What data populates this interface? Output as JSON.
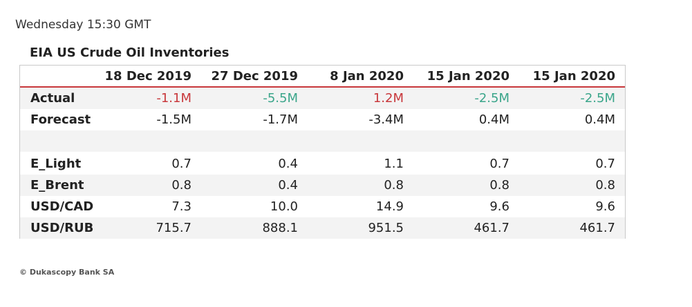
{
  "timestamp": "Wednesday 15:30 GMT",
  "table": {
    "title": "EIA US Crude Oil Inventories",
    "columns": [
      "18 Dec 2019",
      "27 Dec 2019",
      "8 Jan 2020",
      "15 Jan 2020",
      "15 Jan 2020"
    ],
    "rows": {
      "actual": {
        "label": "Actual",
        "values": [
          "-1.1M",
          "-5.5M",
          "1.2M",
          "-2.5M",
          "-2.5M"
        ]
      },
      "forecast": {
        "label": "Forecast",
        "values": [
          "-1.5M",
          "-1.7M",
          "-3.4M",
          "0.4M",
          "0.4M"
        ]
      },
      "e_light": {
        "label": "E_Light",
        "values": [
          "0.7",
          "0.4",
          "1.1",
          "0.7",
          "0.7"
        ]
      },
      "e_brent": {
        "label": "E_Brent",
        "values": [
          "0.8",
          "0.4",
          "0.8",
          "0.8",
          "0.8"
        ]
      },
      "usd_cad": {
        "label": "USD/CAD",
        "values": [
          "7.3",
          "10.0",
          "14.9",
          "9.6",
          "9.6"
        ]
      },
      "usd_rub": {
        "label": "USD/RUB",
        "values": [
          "715.7",
          "888.1",
          "951.5",
          "461.7",
          "461.7"
        ]
      }
    }
  },
  "colors": {
    "header_rule": "#c8373b",
    "actual_red": "#c8373b",
    "actual_green": "#3aa58a",
    "shaded_row": "#f3f3f3"
  },
  "footer": "© Dukascopy Bank SA"
}
